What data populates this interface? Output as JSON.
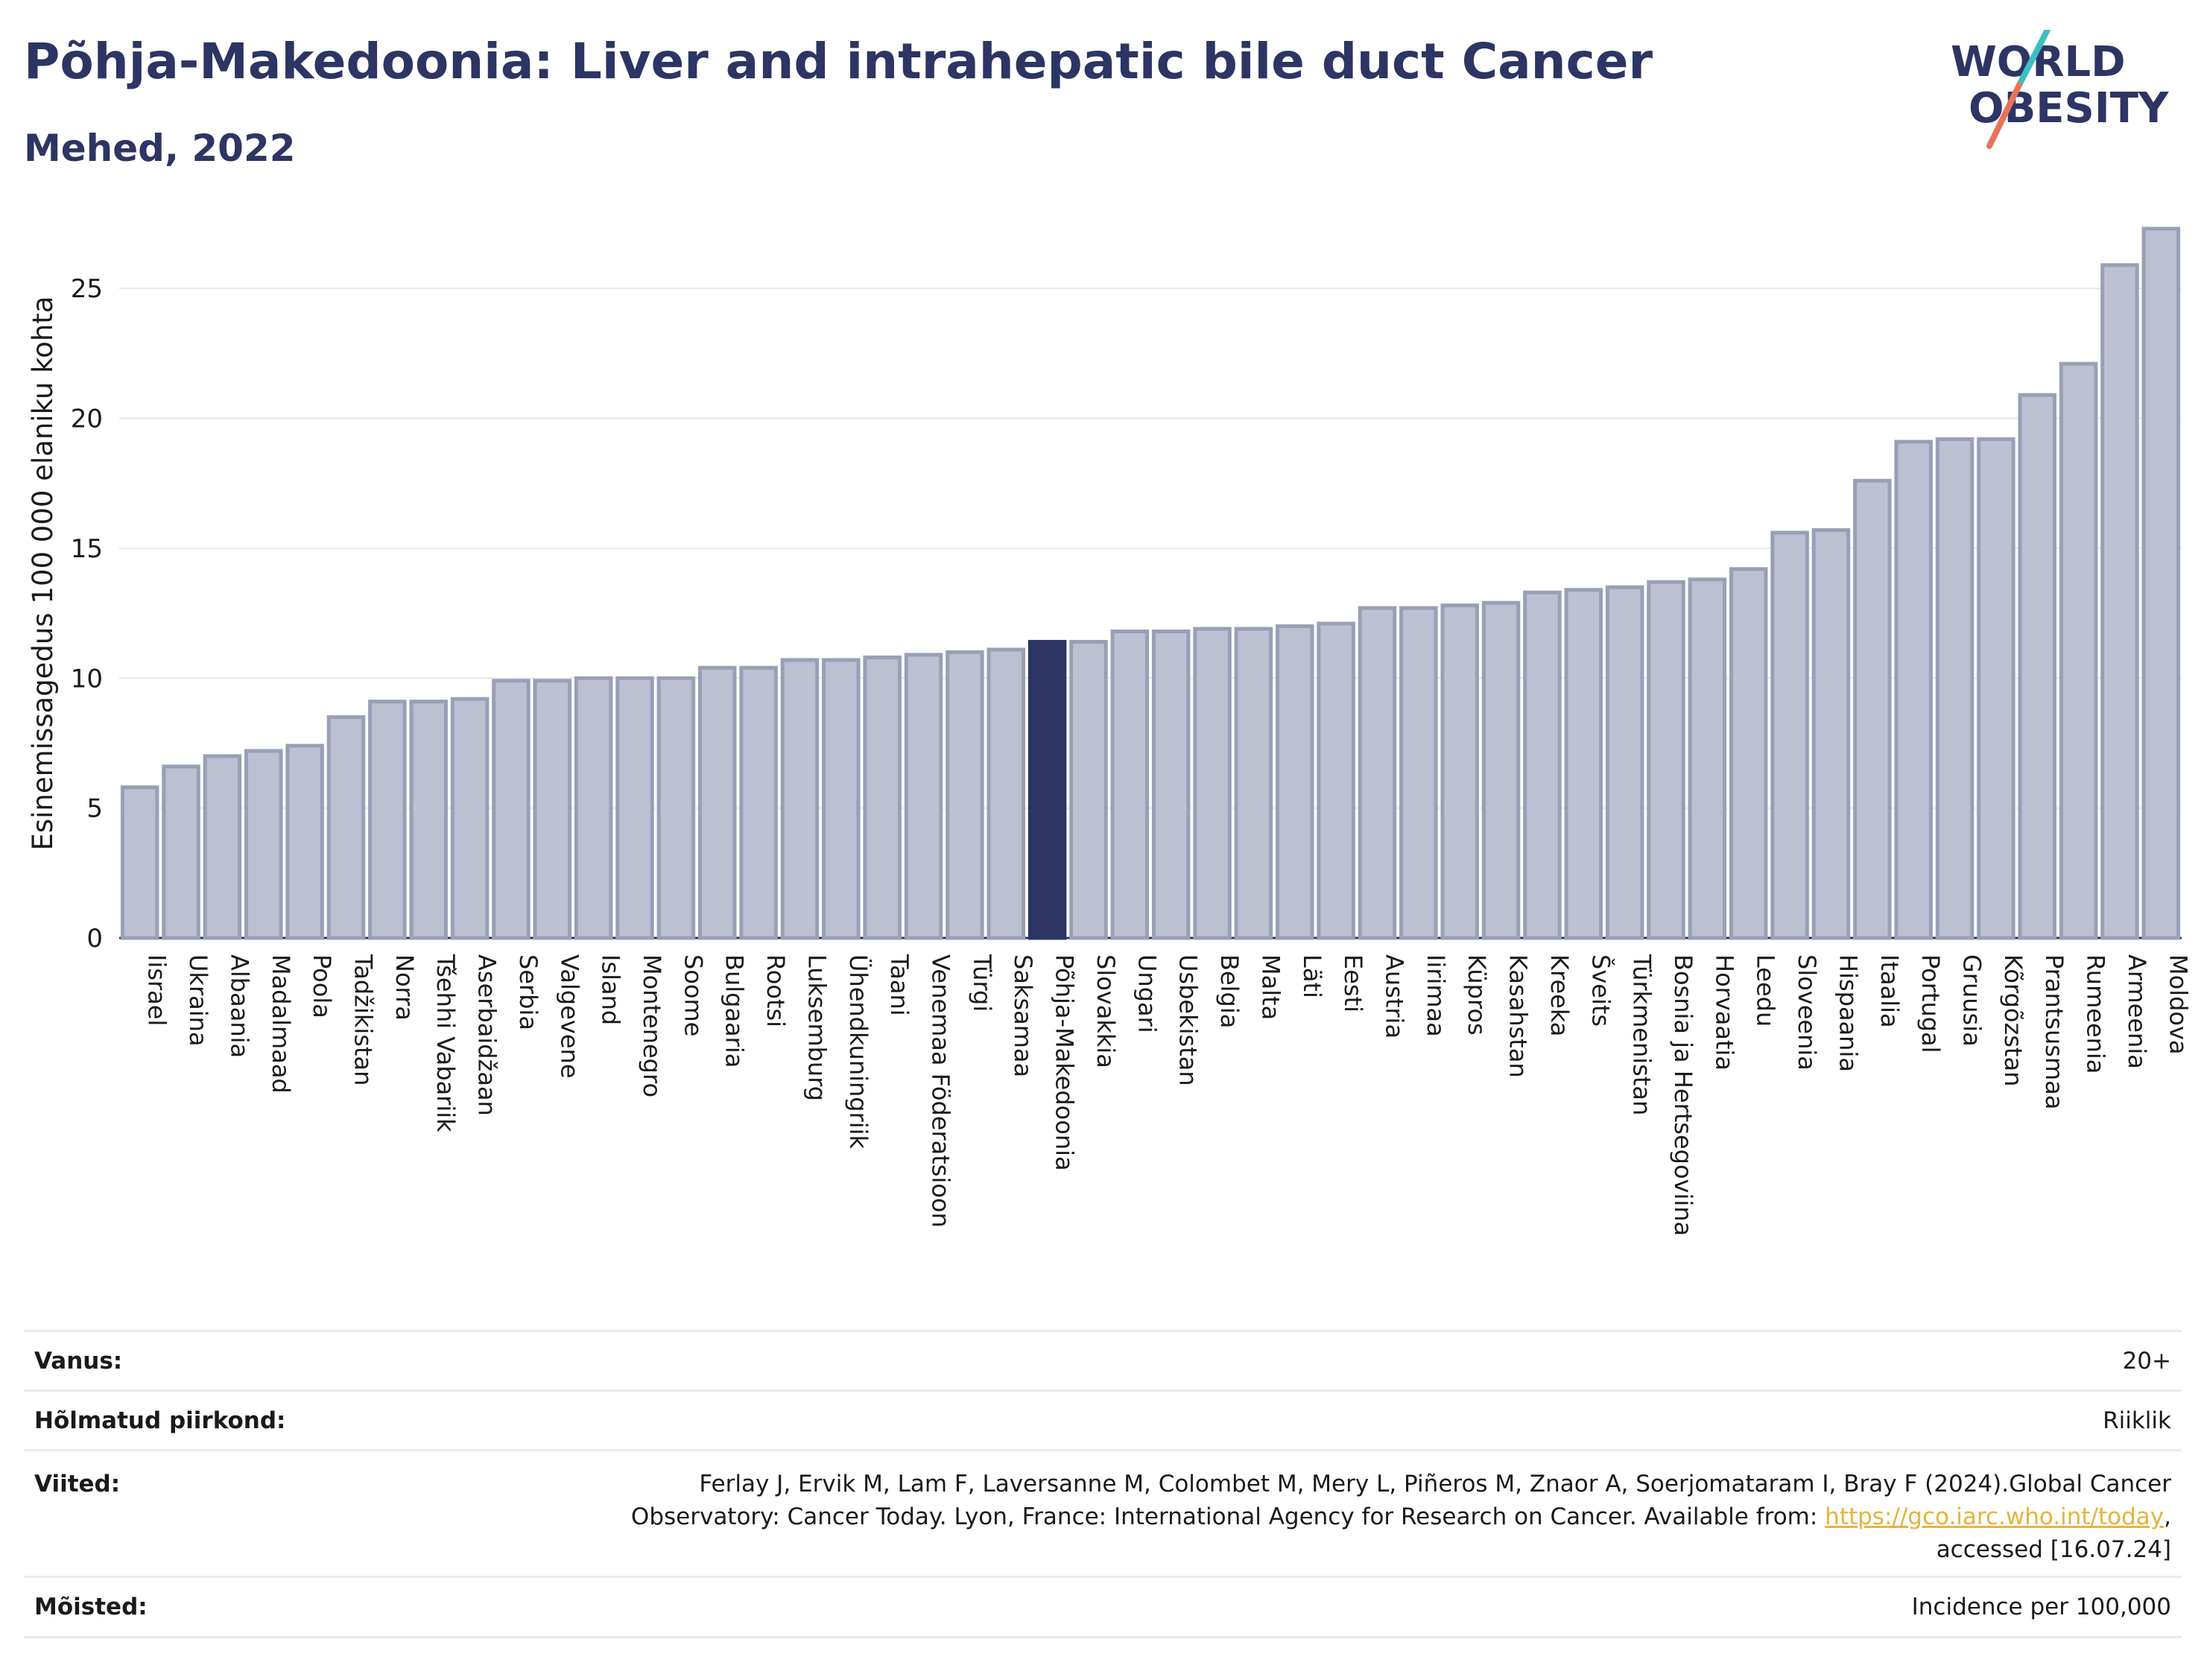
{
  "header": {
    "title": "Põhja-Makedoonia: Liver and intrahepatic bile duct Cancer",
    "subtitle": "Mehed, 2022"
  },
  "logo": {
    "line1": "WORLD",
    "line2": "OBESITY",
    "accent_teal": "#3cbfc2",
    "accent_coral": "#e8735a"
  },
  "colors": {
    "bar": "#bcc0d0",
    "bar_stroke": "#9a9fb8",
    "highlight": "#2c3563"
  },
  "chart_data": {
    "type": "bar",
    "title": "Põhja-Makedoonia: Liver and intrahepatic bile duct Cancer",
    "subtitle": "Mehed, 2022",
    "ylabel": "Esinemissagedus 100 000 elaniku kohta",
    "xlabel": "",
    "ylim": [
      0,
      27.5
    ],
    "yticks": [
      0,
      5,
      10,
      15,
      20,
      25
    ],
    "grid": true,
    "highlight": "Põhja-Makedoonia",
    "categories": [
      "Iisrael",
      "Ukraina",
      "Albaania",
      "Madalmaad",
      "Poola",
      "Tadžikistan",
      "Norra",
      "Tšehhi Vabariik",
      "Aserbaidžaan",
      "Serbia",
      "Valgevene",
      "Island",
      "Montenegro",
      "Soome",
      "Bulgaaria",
      "Rootsi",
      "Luksemburg",
      "Ühendkuningriik",
      "Taani",
      "Venemaa Föderatsioon",
      "Türgi",
      "Saksamaa",
      "Põhja-Makedoonia",
      "Slovakkia",
      "Ungari",
      "Usbekistan",
      "Belgia",
      "Malta",
      "Läti",
      "Eesti",
      "Austria",
      "Iirimaa",
      "Küpros",
      "Kasahstan",
      "Kreeka",
      "Šveits",
      "Türkmenistan",
      "Bosnia ja Hertsegoviina",
      "Horvaatia",
      "Leedu",
      "Sloveenia",
      "Hispaania",
      "Itaalia",
      "Portugal",
      "Gruusia",
      "Kõrgõzstan",
      "Prantsusmaa",
      "Rumeenia",
      "Armeenia",
      "Moldova"
    ],
    "values": [
      5.8,
      6.6,
      7.0,
      7.2,
      7.4,
      8.5,
      9.1,
      9.1,
      9.2,
      9.9,
      9.9,
      10.0,
      10.0,
      10.0,
      10.4,
      10.4,
      10.7,
      10.7,
      10.8,
      10.9,
      11.0,
      11.1,
      11.4,
      11.4,
      11.8,
      11.8,
      11.9,
      11.9,
      12.0,
      12.1,
      12.7,
      12.7,
      12.8,
      12.9,
      13.3,
      13.4,
      13.5,
      13.7,
      13.8,
      14.2,
      15.6,
      15.7,
      17.6,
      19.1,
      19.2,
      19.2,
      20.9,
      22.1,
      25.9,
      27.3
    ]
  },
  "info": {
    "age_label": "Vanus:",
    "age_value": "20+",
    "region_label": "Hõlmatud piirkond:",
    "region_value": "Riiklik",
    "refs_label": "Viited:",
    "refs_line1": "Ferlay J, Ervik M, Lam F, Laversanne M, Colombet M, Mery L, Piñeros M, Znaor A, Soerjomataram I, Bray F (2024).Global Cancer",
    "refs_line2_prefix": "Observatory: Cancer Today. Lyon, France: International Agency for Research on Cancer. Available from: ",
    "refs_link": "https://gco.iarc.who.int/today",
    "refs_line2_suffix": ",",
    "refs_line3": "accessed [16.07.24]",
    "definitions_label": "Mõisted:",
    "definitions_value": "Incidence per 100,000"
  }
}
